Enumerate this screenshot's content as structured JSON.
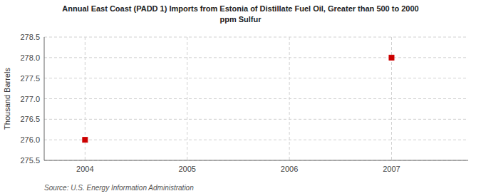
{
  "chart_data": {
    "type": "scatter",
    "title": "Annual East Coast (PADD 1) Imports from Estonia of Distillate Fuel Oil, Greater than 500 to 2000",
    "subtitle": "ppm Sulfur",
    "y_label": "Thousand Barrels",
    "source": "Source: U.S. Energy Information Administration",
    "x": [
      2004,
      2007
    ],
    "values": [
      276.0,
      278.0
    ],
    "color": "#cc0000",
    "marker": "square",
    "xlim": [
      2003.6,
      2007.75
    ],
    "ylim": [
      275.5,
      278.5
    ],
    "xticks": [
      2004,
      2005,
      2006,
      2007
    ],
    "yticks": [
      275.5,
      {
        "value": 276.0,
        "label": "276.0"
      },
      276.5,
      {
        "value": 277.0,
        "label": "277.0"
      },
      277.5,
      {
        "value": 278.0,
        "label": "278.0"
      },
      278.5
    ],
    "grid": true
  }
}
